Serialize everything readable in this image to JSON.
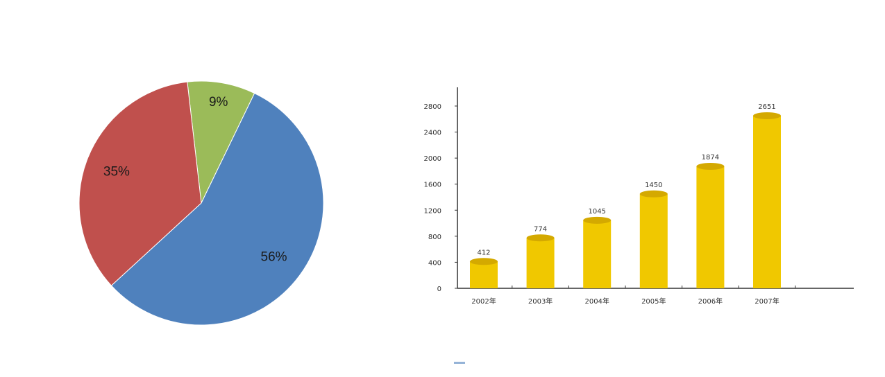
{
  "chart_data": [
    {
      "type": "pie",
      "slices": [
        {
          "label": "9%",
          "value": 9,
          "color": "#9bbb59"
        },
        {
          "label": "56%",
          "value": 56,
          "color": "#4f81bd"
        },
        {
          "label": "35%",
          "value": 35,
          "color": "#c0504d"
        }
      ]
    },
    {
      "type": "bar",
      "categories": [
        "2002年",
        "2003年",
        "2004年",
        "2005年",
        "2006年",
        "2007年"
      ],
      "values": [
        412,
        774,
        1045,
        1450,
        1874,
        2651
      ],
      "value_labels": [
        "412",
        "774",
        "1045",
        "1450",
        "1874",
        "2651"
      ],
      "ylim": [
        0,
        2800
      ],
      "yticks": [
        0,
        400,
        800,
        1200,
        1600,
        2000,
        2400,
        2800
      ],
      "ytick_labels": [
        "0",
        "400",
        "800",
        "1200",
        "1600",
        "2000",
        "2400",
        "2800"
      ],
      "bar_color": "#f0c800",
      "bar_top_color": "#d4a900",
      "grid": false
    }
  ]
}
